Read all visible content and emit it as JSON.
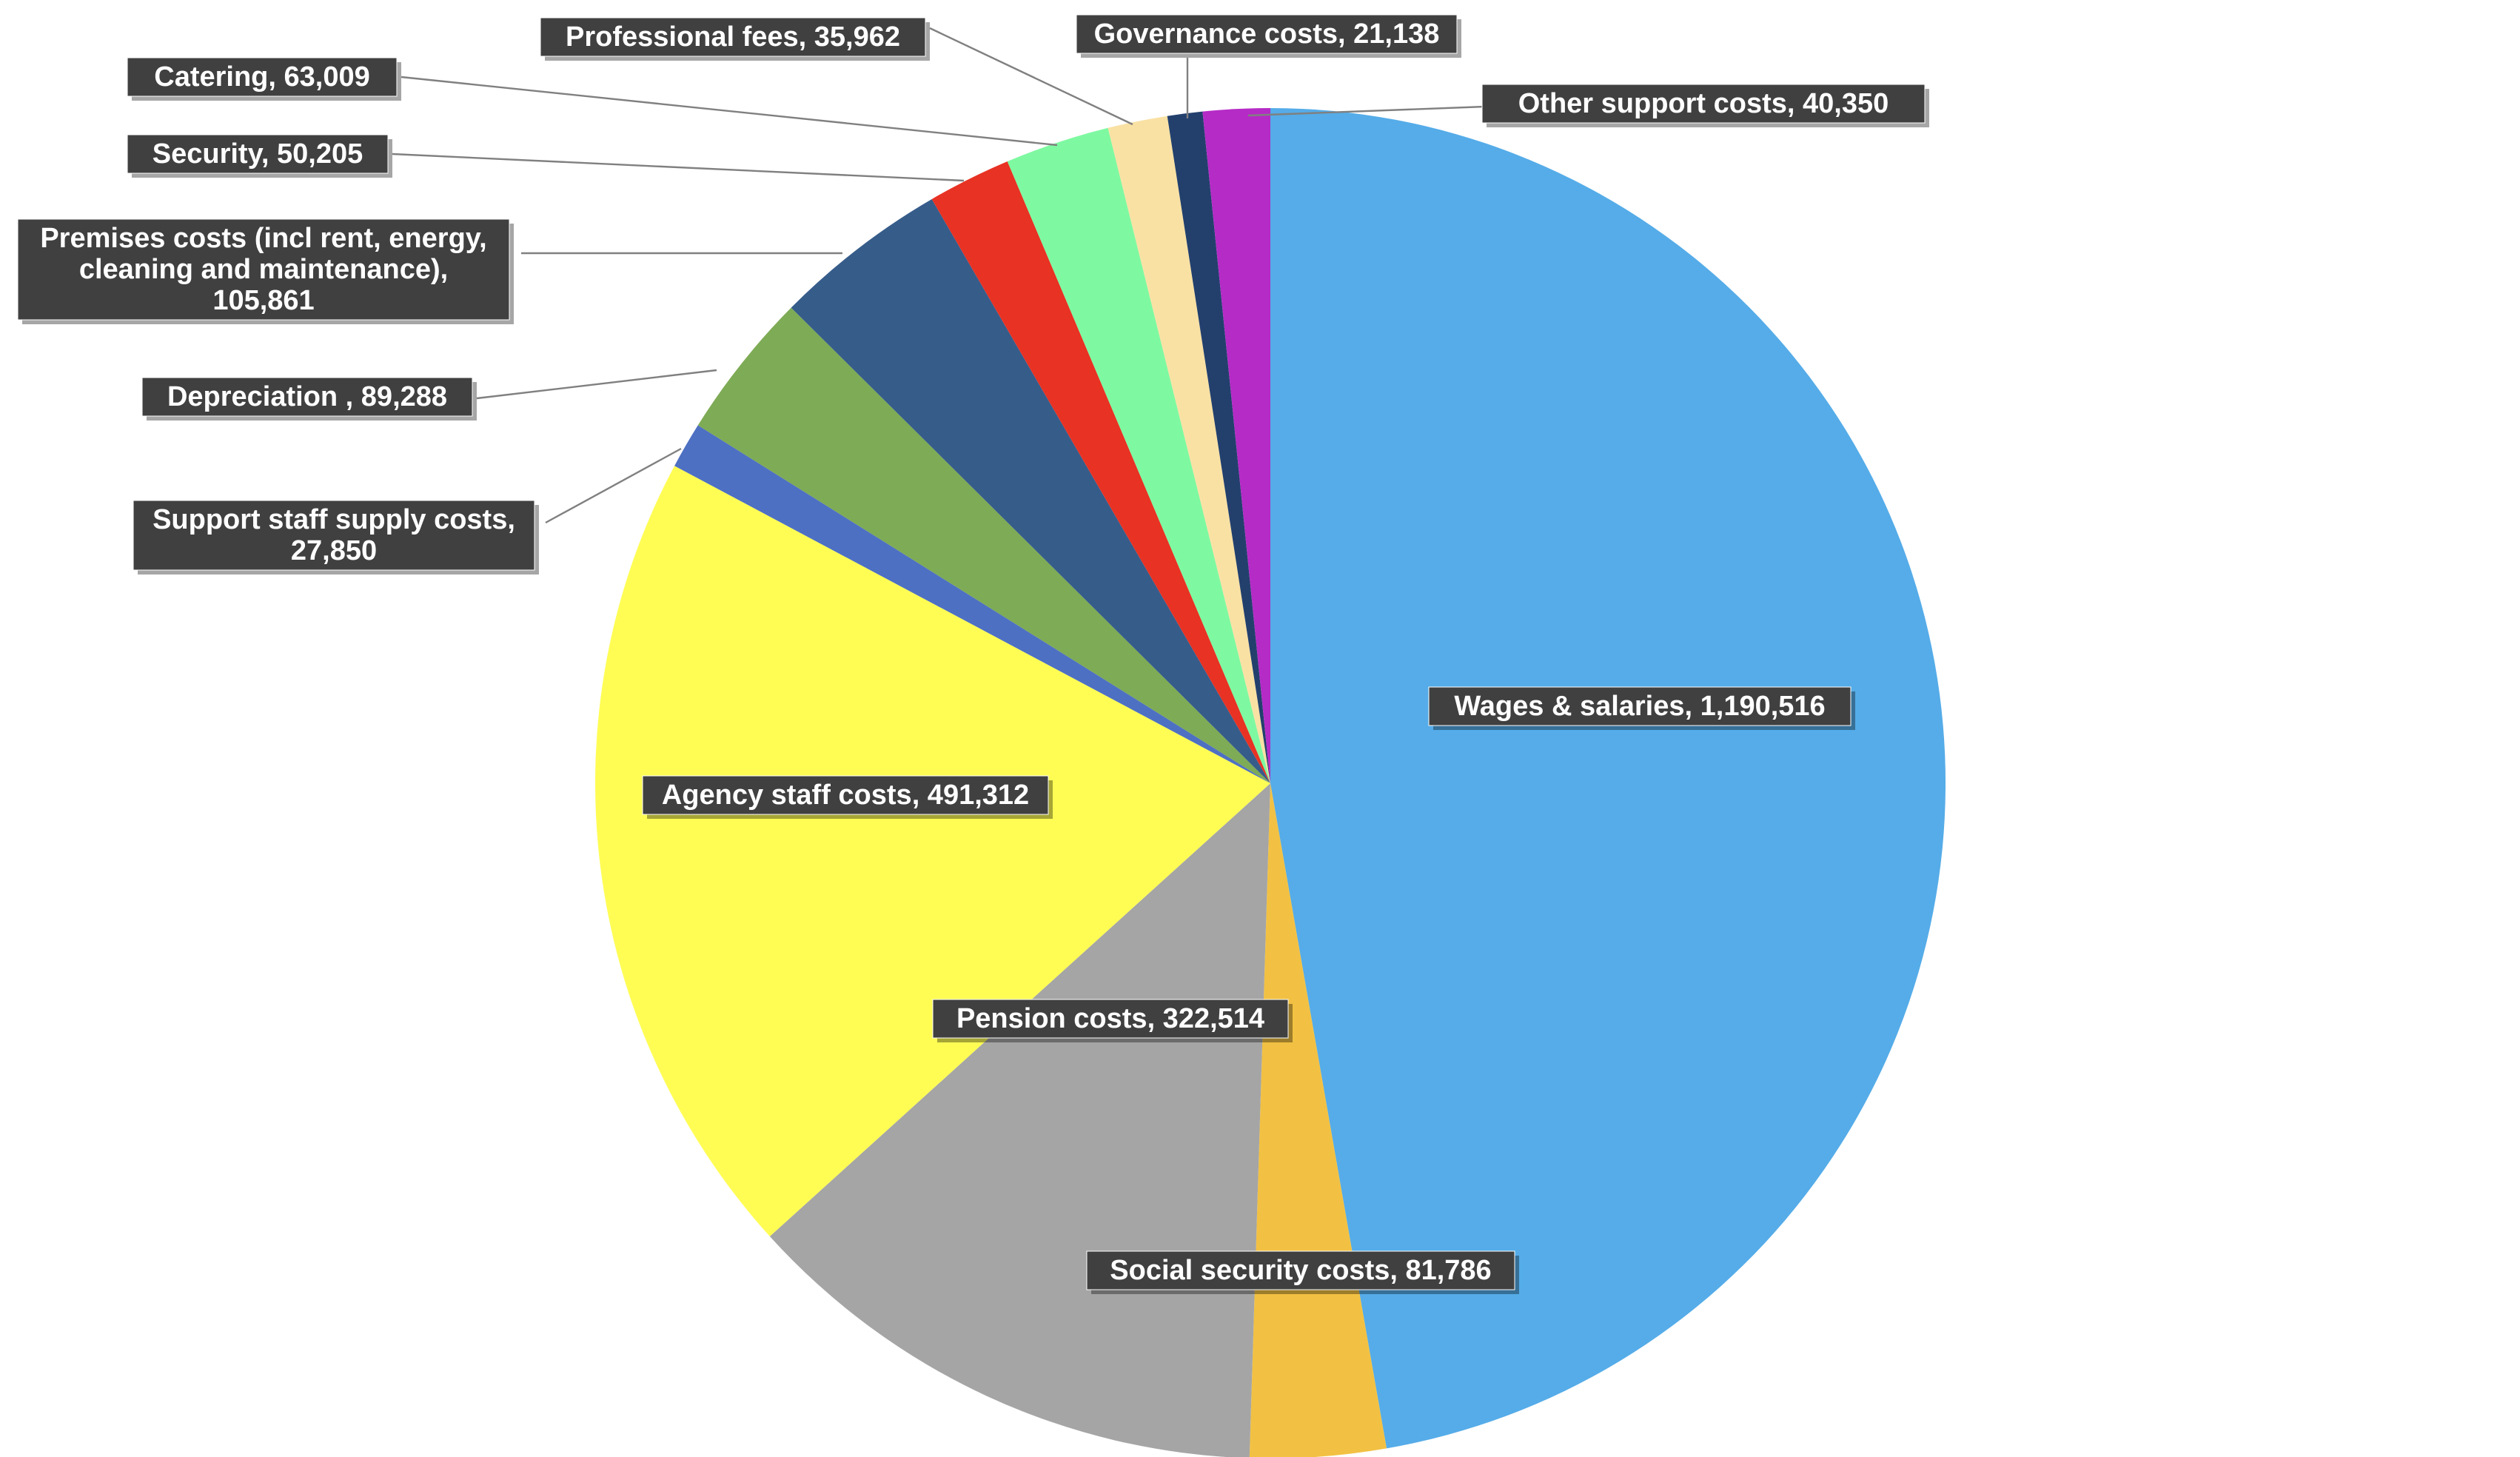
{
  "chart_data": {
    "type": "pie",
    "start": "12 o'clock",
    "direction": "clockwise",
    "slices": [
      {
        "label": "Wages & salaries",
        "value": 1190516,
        "display": "1,190,516",
        "color": "#55ACE8"
      },
      {
        "label": "Social security costs",
        "value": 81786,
        "display": "81,786",
        "color": "#F2C143"
      },
      {
        "label": "Pension costs",
        "value": 322514,
        "display": "322,514",
        "color": "#A5A5A5"
      },
      {
        "label": "Agency staff costs",
        "value": 491312,
        "display": "491,312",
        "color": "#FFFD54"
      },
      {
        "label": "Support staff supply costs",
        "value": 27850,
        "display": "27,850",
        "color": "#4E70C3"
      },
      {
        "label": "Depreciation ",
        "value": 89288,
        "display": "89,288",
        "color": "#7EAB55"
      },
      {
        "label": "Premises costs (incl rent, energy, cleaning and maintenance)",
        "value": 105861,
        "display": "105,861",
        "color": "#365C8A"
      },
      {
        "label": "Security",
        "value": 50205,
        "display": "50,205",
        "color": "#E83223"
      },
      {
        "label": "Catering",
        "value": 63009,
        "display": "63,009",
        "color": "#7EF9A1"
      },
      {
        "label": "Professional fees",
        "value": 35962,
        "display": "35,962",
        "color": "#F9E1A4"
      },
      {
        "label": "Governance costs",
        "value": 21138,
        "display": "21,138",
        "color": "#23406D"
      },
      {
        "label": "Other support costs",
        "value": 40350,
        "display": "40,350",
        "color": "#B52BC6"
      }
    ]
  },
  "labels": [
    {
      "lines": [
        "Wages & salaries,  1,190,516"
      ]
    },
    {
      "lines": [
        "Social security costs,  81,786"
      ]
    },
    {
      "lines": [
        "Pension costs,  322,514"
      ]
    },
    {
      "lines": [
        "Agency staff costs,  491,312"
      ]
    },
    {
      "lines": [
        "Support staff supply costs,",
        "27,850"
      ]
    },
    {
      "lines": [
        "Depreciation ,  89,288"
      ]
    },
    {
      "lines": [
        "Premises costs (incl rent, energy,",
        "cleaning and maintenance),",
        "105,861"
      ]
    },
    {
      "lines": [
        "Security,  50,205"
      ]
    },
    {
      "lines": [
        "Catering,  63,009"
      ]
    },
    {
      "lines": [
        "Professional fees,  35,962"
      ]
    },
    {
      "lines": [
        "Governance costs,  21,138"
      ]
    },
    {
      "lines": [
        "Other support costs,  40,350"
      ]
    }
  ]
}
